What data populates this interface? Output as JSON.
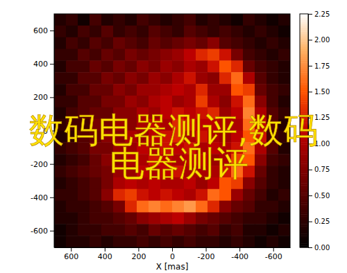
{
  "chart_data": {
    "type": "heatmap",
    "xlabel": "X [mas]",
    "xlim": [
      700,
      -700
    ],
    "xticks": [
      600,
      400,
      200,
      0,
      -200,
      -400,
      -600
    ],
    "ylim": [
      -700,
      700
    ],
    "yticks": [
      -600,
      -400,
      -200,
      0,
      200,
      400,
      600
    ],
    "x": [
      665,
      595,
      525,
      455,
      385,
      315,
      245,
      175,
      105,
      35,
      -35,
      -105,
      -175,
      -245,
      -315,
      -385,
      -455,
      -525,
      -595,
      -665
    ],
    "y": [
      665,
      595,
      525,
      455,
      385,
      315,
      245,
      175,
      105,
      35,
      -35,
      -105,
      -175,
      -245,
      -315,
      -385,
      -455,
      -525,
      -595,
      -665
    ],
    "z": [
      [
        0.2,
        0.3,
        0.1,
        0.4,
        0.2,
        0.3,
        0.2,
        0.4,
        0.3,
        0.2,
        0.3,
        0.4,
        0.2,
        0.3,
        0.2,
        0.1,
        0.3,
        0.2,
        0.1,
        0.2
      ],
      [
        0.3,
        0.2,
        0.4,
        0.3,
        0.5,
        0.3,
        0.4,
        0.3,
        0.5,
        0.4,
        0.3,
        0.5,
        0.4,
        0.3,
        0.4,
        0.3,
        0.2,
        0.3,
        0.2,
        0.1
      ],
      [
        0.2,
        0.4,
        0.3,
        0.5,
        0.4,
        0.6,
        0.5,
        0.4,
        0.6,
        0.5,
        0.6,
        0.7,
        0.6,
        0.8,
        0.5,
        0.4,
        0.3,
        0.2,
        0.3,
        0.2
      ],
      [
        0.3,
        0.3,
        0.5,
        0.4,
        0.6,
        0.5,
        0.7,
        0.6,
        0.7,
        0.8,
        0.9,
        1.1,
        1.3,
        1.4,
        1.2,
        0.7,
        0.4,
        0.3,
        0.2,
        0.3
      ],
      [
        0.2,
        0.4,
        0.4,
        0.6,
        0.5,
        0.7,
        0.6,
        0.8,
        0.7,
        0.9,
        0.8,
        1.0,
        0.9,
        1.2,
        1.5,
        1.3,
        0.6,
        0.4,
        0.3,
        0.2
      ],
      [
        0.3,
        0.3,
        0.5,
        0.5,
        0.7,
        0.6,
        0.8,
        0.7,
        0.9,
        0.8,
        1.0,
        1.2,
        0.9,
        0.8,
        1.3,
        1.6,
        1.0,
        0.5,
        0.3,
        0.2
      ],
      [
        0.2,
        0.4,
        0.4,
        0.6,
        0.6,
        0.8,
        0.7,
        0.9,
        0.9,
        1.0,
        1.1,
        1.0,
        1.3,
        0.9,
        0.9,
        1.5,
        1.4,
        0.6,
        0.4,
        0.3
      ],
      [
        0.3,
        0.3,
        0.5,
        0.5,
        0.7,
        0.7,
        0.9,
        0.8,
        1.0,
        1.1,
        0.9,
        1.0,
        1.4,
        1.0,
        0.8,
        1.2,
        1.6,
        0.8,
        0.4,
        0.2
      ],
      [
        0.2,
        0.4,
        0.5,
        0.6,
        0.6,
        0.8,
        0.8,
        1.0,
        0.9,
        1.1,
        1.2,
        1.1,
        1.2,
        1.3,
        0.9,
        1.1,
        1.7,
        1.0,
        0.5,
        0.3
      ],
      [
        0.3,
        0.4,
        0.4,
        0.7,
        0.7,
        0.9,
        0.8,
        1.0,
        1.1,
        1.0,
        1.3,
        1.2,
        1.1,
        1.1,
        1.0,
        1.0,
        1.6,
        1.1,
        0.5,
        0.2
      ],
      [
        0.2,
        0.3,
        0.5,
        0.6,
        0.8,
        0.8,
        1.0,
        0.9,
        1.1,
        1.2,
        1.3,
        1.0,
        1.2,
        1.0,
        0.9,
        1.1,
        1.5,
        1.2,
        0.4,
        0.3
      ],
      [
        0.3,
        0.4,
        0.5,
        0.7,
        0.7,
        0.9,
        0.9,
        1.1,
        1.0,
        1.2,
        1.1,
        1.2,
        1.0,
        1.1,
        1.0,
        1.2,
        1.6,
        1.0,
        0.5,
        0.2
      ],
      [
        0.2,
        0.3,
        0.4,
        0.6,
        0.8,
        0.8,
        1.0,
        1.0,
        1.2,
        1.1,
        1.0,
        1.1,
        1.1,
        0.9,
        1.0,
        1.4,
        1.5,
        0.8,
        0.4,
        0.3
      ],
      [
        0.3,
        0.4,
        0.5,
        0.6,
        0.7,
        0.9,
        0.9,
        1.1,
        1.0,
        1.1,
        1.2,
        1.0,
        1.0,
        1.0,
        1.2,
        1.6,
        1.2,
        0.6,
        0.3,
        0.2
      ],
      [
        0.2,
        0.3,
        0.4,
        0.5,
        0.7,
        1.0,
        1.1,
        1.0,
        1.1,
        1.0,
        1.0,
        1.1,
        0.9,
        1.1,
        1.5,
        1.4,
        0.8,
        0.5,
        0.3,
        0.2
      ],
      [
        0.3,
        0.3,
        0.4,
        0.5,
        0.8,
        1.3,
        1.4,
        1.2,
        1.1,
        1.2,
        1.1,
        1.0,
        1.2,
        1.6,
        1.5,
        0.9,
        0.6,
        0.4,
        0.2,
        0.3
      ],
      [
        0.2,
        0.3,
        0.3,
        0.4,
        0.5,
        0.7,
        1.3,
        1.6,
        1.7,
        1.6,
        1.7,
        1.8,
        1.6,
        1.3,
        0.8,
        0.6,
        0.5,
        0.3,
        0.3,
        0.2
      ],
      [
        0.2,
        0.2,
        0.3,
        0.4,
        0.4,
        0.5,
        0.6,
        0.8,
        0.9,
        1.0,
        1.1,
        0.9,
        0.7,
        0.6,
        0.5,
        0.4,
        0.3,
        0.3,
        0.2,
        0.1
      ],
      [
        0.1,
        0.2,
        0.3,
        0.3,
        0.4,
        0.4,
        0.5,
        0.4,
        0.6,
        0.5,
        0.6,
        0.5,
        0.4,
        0.5,
        0.3,
        0.4,
        0.2,
        0.2,
        0.1,
        0.2
      ],
      [
        0.1,
        0.2,
        0.2,
        0.3,
        0.2,
        0.3,
        0.3,
        0.4,
        0.3,
        0.4,
        0.3,
        0.4,
        0.3,
        0.3,
        0.2,
        0.3,
        0.2,
        0.1,
        0.2,
        0.1
      ]
    ],
    "color_range": [
      0,
      2.25
    ],
    "color_ticks": [
      {
        "value": 0,
        "label": "0.00"
      },
      {
        "value": 0.25,
        "label": "0.25"
      },
      {
        "value": 0.5,
        "label": "0.50"
      },
      {
        "value": 0.75,
        "label": "0.75"
      },
      {
        "value": 1,
        "label": "1.00"
      },
      {
        "value": 1.25,
        "label": "1.25"
      },
      {
        "value": 1.5,
        "label": "1.50"
      },
      {
        "value": 1.75,
        "label": "1.75"
      },
      {
        "value": 2,
        "label": "2.00"
      },
      {
        "value": 2.25,
        "label": "2.25"
      }
    ],
    "annotations": [
      "数码电器测评,数码",
      "电器测评"
    ]
  }
}
